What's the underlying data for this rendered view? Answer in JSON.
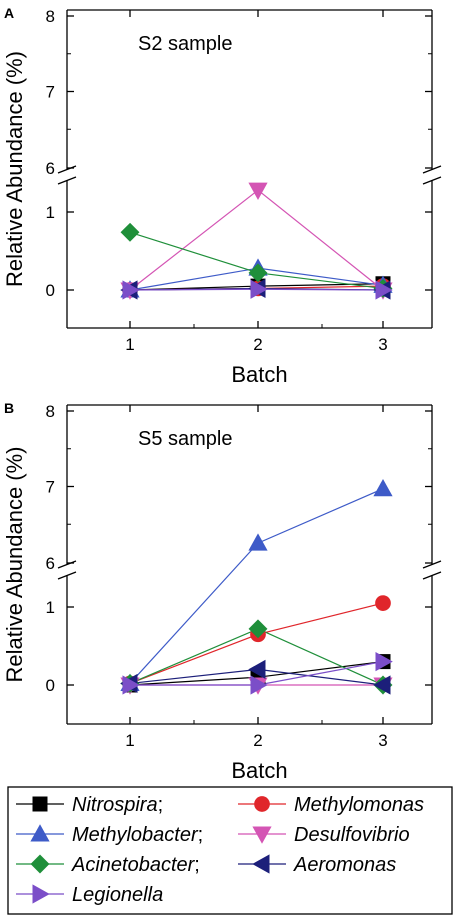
{
  "legend": {
    "entries": [
      {
        "name": "Nitrospira",
        "suffix": ";",
        "color": "#000000",
        "marker": "square"
      },
      {
        "name": "Methylomonas",
        "suffix": "",
        "color": "#e0262b",
        "marker": "circle"
      },
      {
        "name": "Methylobacter",
        "suffix": ";",
        "color": "#3e5bc8",
        "marker": "triangle-up"
      },
      {
        "name": "Desulfovibrio",
        "suffix": "",
        "color": "#d455b4",
        "marker": "triangle-down"
      },
      {
        "name": "Acinetobacter",
        "suffix": ";",
        "color": "#1f8f3a",
        "marker": "diamond"
      },
      {
        "name": "Aeromonas",
        "suffix": "",
        "color": "#1c1f7a",
        "marker": "triangle-left"
      },
      {
        "name": "Legionella",
        "suffix": "",
        "color": "#7b4ec8",
        "marker": "triangle-right"
      }
    ]
  },
  "chart_data": [
    {
      "type": "line",
      "panel_letter": "A",
      "title": "S2 sample",
      "xlabel": "Batch",
      "ylabel": "Relative Abundance (%)",
      "x": [
        1,
        2,
        3
      ],
      "xticks": [
        "1",
        "2",
        "3"
      ],
      "y_axis_break": {
        "lower": [
          -0.25,
          1.3
        ],
        "upper": [
          6.0,
          8.0
        ]
      },
      "yticks": [
        "0",
        "1",
        "6",
        "7",
        "8"
      ],
      "series": [
        {
          "name": "Nitrospira",
          "values": [
            0.0,
            0.05,
            0.08
          ]
        },
        {
          "name": "Methylomonas",
          "values": [
            0.0,
            0.02,
            0.05
          ]
        },
        {
          "name": "Methylobacter",
          "values": [
            0.0,
            0.28,
            0.06
          ]
        },
        {
          "name": "Desulfovibrio",
          "values": [
            0.0,
            1.28,
            0.0
          ]
        },
        {
          "name": "Acinetobacter",
          "values": [
            0.74,
            0.22,
            0.02
          ]
        },
        {
          "name": "Aeromonas",
          "values": [
            0.0,
            0.02,
            0.0
          ]
        },
        {
          "name": "Legionella",
          "values": [
            0.0,
            0.01,
            0.0
          ]
        }
      ]
    },
    {
      "type": "line",
      "panel_letter": "B",
      "title": "S5 sample",
      "xlabel": "Batch",
      "ylabel": "Relative Abundance (%)",
      "x": [
        1,
        2,
        3
      ],
      "xticks": [
        "1",
        "2",
        "3"
      ],
      "y_axis_break": {
        "lower": [
          -0.25,
          1.3
        ],
        "upper": [
          6.0,
          8.0
        ]
      },
      "yticks": [
        "0",
        "1",
        "6",
        "7",
        "8"
      ],
      "series": [
        {
          "name": "Nitrospira",
          "values": [
            0.0,
            0.1,
            0.3
          ]
        },
        {
          "name": "Methylomonas",
          "values": [
            0.02,
            0.65,
            1.05
          ]
        },
        {
          "name": "Methylobacter",
          "values": [
            0.02,
            6.25,
            6.97
          ]
        },
        {
          "name": "Desulfovibrio",
          "values": [
            0.0,
            0.0,
            0.0
          ]
        },
        {
          "name": "Acinetobacter",
          "values": [
            0.02,
            0.72,
            0.0
          ]
        },
        {
          "name": "Aeromonas",
          "values": [
            0.02,
            0.2,
            0.0
          ]
        },
        {
          "name": "Legionella",
          "values": [
            0.0,
            0.0,
            0.3
          ]
        }
      ]
    }
  ]
}
